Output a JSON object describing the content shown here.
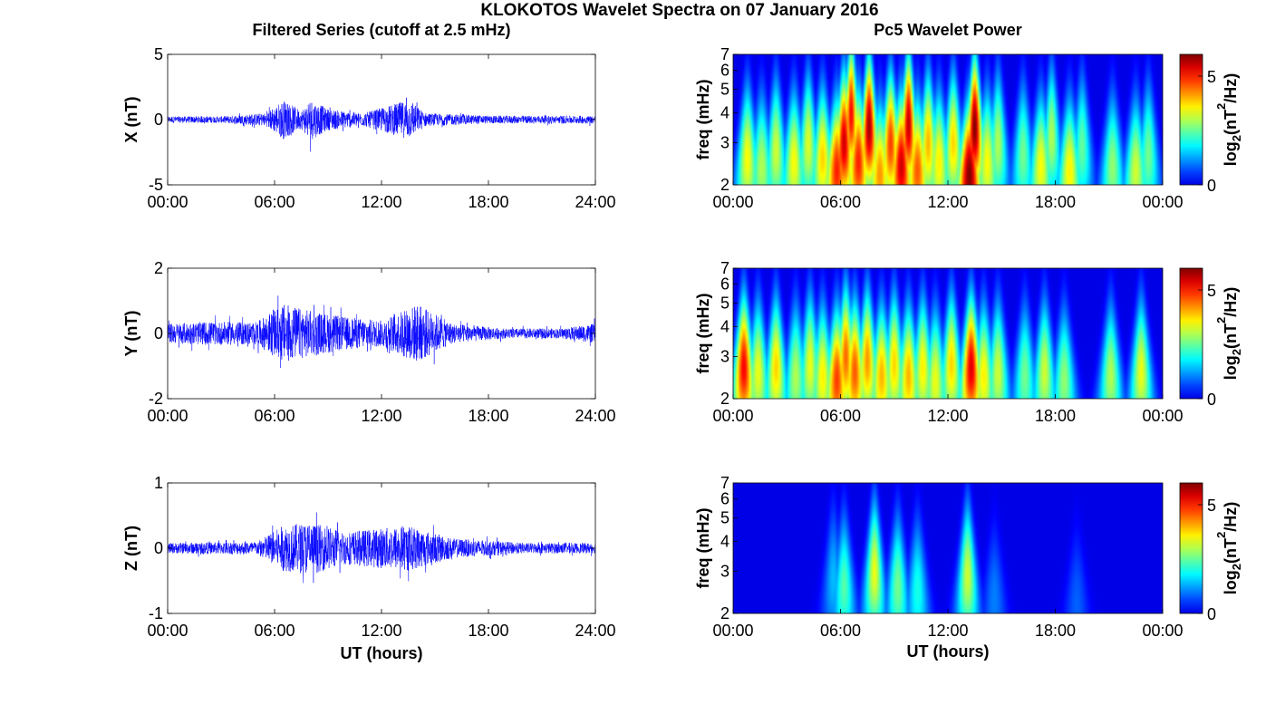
{
  "figure": {
    "title": "KLOKOTOS Wavelet Spectra on 07 January 2016",
    "left_title": "Filtered Series (cutoff at 2.5 mHz)",
    "right_title": "Pc5 Wavelet Power"
  },
  "chart_data": [
    {
      "type": "line",
      "name": "X",
      "ylabel": "X (nT)",
      "xlabel": "",
      "ylim": [
        -5,
        5
      ],
      "yticks": [
        "5",
        "0",
        "-5"
      ],
      "xticks": [
        "00:00",
        "06:00",
        "12:00",
        "18:00",
        "24:00"
      ],
      "xlim_hours": [
        0,
        24
      ],
      "color": "#0000ff",
      "envelope_nT": [
        {
          "hour": 0,
          "amp": 0.25
        },
        {
          "hour": 3,
          "amp": 0.25
        },
        {
          "hour": 5.5,
          "amp": 0.5
        },
        {
          "hour": 6.5,
          "amp": 1.5
        },
        {
          "hour": 7.5,
          "amp": 0.7
        },
        {
          "hour": 8,
          "amp": 1.6
        },
        {
          "hour": 9,
          "amp": 0.8
        },
        {
          "hour": 11,
          "amp": 0.5
        },
        {
          "hour": 13.5,
          "amp": 1.5
        },
        {
          "hour": 14.5,
          "amp": 0.5
        },
        {
          "hour": 18,
          "amp": 0.3
        },
        {
          "hour": 24,
          "amp": 0.3
        }
      ]
    },
    {
      "type": "line",
      "name": "Y",
      "ylabel": "Y (nT)",
      "xlabel": "",
      "ylim": [
        -2,
        2
      ],
      "yticks": [
        "2",
        "0",
        "-2"
      ],
      "xticks": [
        "00:00",
        "06:00",
        "12:00",
        "18:00",
        "24:00"
      ],
      "xlim_hours": [
        0,
        24
      ],
      "color": "#0000ff",
      "envelope_nT": [
        {
          "hour": 0,
          "amp": 0.3
        },
        {
          "hour": 2,
          "amp": 0.35
        },
        {
          "hour": 5,
          "amp": 0.35
        },
        {
          "hour": 6.5,
          "amp": 0.9
        },
        {
          "hour": 8,
          "amp": 0.7
        },
        {
          "hour": 10,
          "amp": 0.5
        },
        {
          "hour": 12,
          "amp": 0.4
        },
        {
          "hour": 14,
          "amp": 0.9
        },
        {
          "hour": 16,
          "amp": 0.3
        },
        {
          "hour": 19,
          "amp": 0.15
        },
        {
          "hour": 22,
          "amp": 0.15
        },
        {
          "hour": 24,
          "amp": 0.3
        }
      ]
    },
    {
      "type": "line",
      "name": "Z",
      "ylabel": "Z (nT)",
      "xlabel": "UT (hours)",
      "ylim": [
        -1,
        1
      ],
      "yticks": [
        "1",
        "0",
        "-1"
      ],
      "xticks": [
        "00:00",
        "06:00",
        "12:00",
        "18:00",
        "24:00"
      ],
      "xlim_hours": [
        0,
        24
      ],
      "color": "#0000ff",
      "envelope_nT": [
        {
          "hour": 0,
          "amp": 0.08
        },
        {
          "hour": 5,
          "amp": 0.1
        },
        {
          "hour": 6.5,
          "amp": 0.35
        },
        {
          "hour": 8,
          "amp": 0.4
        },
        {
          "hour": 10,
          "amp": 0.25
        },
        {
          "hour": 13.5,
          "amp": 0.35
        },
        {
          "hour": 16,
          "amp": 0.15
        },
        {
          "hour": 20,
          "amp": 0.08
        },
        {
          "hour": 24,
          "amp": 0.08
        }
      ]
    },
    {
      "type": "heatmap",
      "name": "X wavelet power",
      "ylabel": "freq (mHz)",
      "xlabel": "",
      "yscale": "log",
      "ylim_mHz": [
        2,
        7
      ],
      "yticks": [
        "7",
        "6",
        "5",
        "4",
        "3",
        "2"
      ],
      "xticks": [
        "00:00",
        "06:00",
        "12:00",
        "18:00",
        "00:00"
      ],
      "colorbar": {
        "label_base": "log",
        "label_sub": "2",
        "label_unit": "(nT",
        "label_sup": "2",
        "label_end": "/Hz)",
        "ticks": [
          "5",
          "0"
        ],
        "range": [
          0,
          6
        ],
        "colormap": "jet"
      },
      "events_hour_freq_power": [
        [
          0.8,
          2.6,
          3.5
        ],
        [
          1.6,
          2.4,
          3.0
        ],
        [
          2.4,
          2.8,
          3.2
        ],
        [
          3.4,
          2.5,
          3.5
        ],
        [
          4.2,
          3.0,
          3.3
        ],
        [
          5.0,
          2.6,
          3.8
        ],
        [
          5.8,
          2.3,
          5.0
        ],
        [
          6.2,
          3.0,
          5.5
        ],
        [
          6.6,
          4.0,
          5.2
        ],
        [
          7.0,
          2.5,
          5.0
        ],
        [
          7.6,
          3.5,
          5.8
        ],
        [
          8.2,
          2.2,
          4.2
        ],
        [
          8.8,
          3.0,
          4.8
        ],
        [
          9.4,
          2.4,
          5.5
        ],
        [
          9.8,
          3.6,
          5.6
        ],
        [
          10.3,
          2.3,
          4.6
        ],
        [
          10.9,
          3.0,
          4.0
        ],
        [
          11.5,
          2.5,
          3.6
        ],
        [
          12.3,
          3.0,
          3.8
        ],
        [
          13.2,
          2.2,
          6.0
        ],
        [
          13.5,
          3.5,
          6.0
        ],
        [
          14.2,
          2.5,
          3.5
        ],
        [
          14.8,
          3.0,
          3.0
        ],
        [
          16.2,
          2.7,
          2.6
        ],
        [
          17.2,
          2.4,
          3.5
        ],
        [
          17.8,
          3.2,
          3.0
        ],
        [
          18.8,
          2.3,
          3.6
        ],
        [
          19.5,
          2.9,
          2.5
        ],
        [
          21.2,
          2.4,
          2.8
        ],
        [
          22.5,
          2.3,
          3.2
        ],
        [
          23.2,
          2.7,
          2.6
        ]
      ]
    },
    {
      "type": "heatmap",
      "name": "Y wavelet power",
      "ylabel": "freq (mHz)",
      "xlabel": "",
      "yscale": "log",
      "ylim_mHz": [
        2,
        7
      ],
      "yticks": [
        "7",
        "6",
        "5",
        "4",
        "3",
        "2"
      ],
      "xticks": [
        "00:00",
        "06:00",
        "12:00",
        "18:00",
        "00:00"
      ],
      "colorbar": {
        "label_base": "log",
        "label_sub": "2",
        "label_unit": "(nT",
        "label_sup": "2",
        "label_end": "/Hz)",
        "ticks": [
          "5",
          "0"
        ],
        "range": [
          0,
          6
        ],
        "colormap": "jet"
      },
      "events_hour_freq_power": [
        [
          0.6,
          2.7,
          5.2
        ],
        [
          1.4,
          2.6,
          3.4
        ],
        [
          2.4,
          2.7,
          3.8
        ],
        [
          3.5,
          2.5,
          3.0
        ],
        [
          4.3,
          2.8,
          3.4
        ],
        [
          5.0,
          2.5,
          3.6
        ],
        [
          5.8,
          2.4,
          4.8
        ],
        [
          6.3,
          3.0,
          4.5
        ],
        [
          6.8,
          2.6,
          4.6
        ],
        [
          7.5,
          2.9,
          4.2
        ],
        [
          8.3,
          2.5,
          4.0
        ],
        [
          9.0,
          2.8,
          3.8
        ],
        [
          9.8,
          2.5,
          4.0
        ],
        [
          10.6,
          2.7,
          3.6
        ],
        [
          11.3,
          2.4,
          3.4
        ],
        [
          12.2,
          2.8,
          3.8
        ],
        [
          13.3,
          2.7,
          5.4
        ],
        [
          14.0,
          2.5,
          3.6
        ],
        [
          14.8,
          2.6,
          3.2
        ],
        [
          16.3,
          2.5,
          2.6
        ],
        [
          17.4,
          2.6,
          3.2
        ],
        [
          18.5,
          2.4,
          2.8
        ],
        [
          21.1,
          2.5,
          3.0
        ],
        [
          22.8,
          2.6,
          3.4
        ]
      ]
    },
    {
      "type": "heatmap",
      "name": "Z wavelet power",
      "ylabel": "freq (mHz)",
      "xlabel": "UT (hours)",
      "yscale": "log",
      "ylim_mHz": [
        2,
        7
      ],
      "yticks": [
        "7",
        "6",
        "5",
        "4",
        "3",
        "2"
      ],
      "xticks": [
        "00:00",
        "06:00",
        "12:00",
        "18:00",
        "00:00"
      ],
      "colorbar": {
        "label_base": "log",
        "label_sub": "2",
        "label_unit": "(nT",
        "label_sup": "2",
        "label_end": "/Hz)",
        "ticks": [
          "5",
          "0"
        ],
        "range": [
          0,
          6
        ],
        "colormap": "jet"
      },
      "events_hour_freq_power": [
        [
          5.6,
          2.8,
          1.4
        ],
        [
          6.2,
          2.6,
          2.4
        ],
        [
          7.9,
          3.0,
          3.4
        ],
        [
          9.2,
          2.6,
          2.6
        ],
        [
          10.3,
          2.5,
          2.0
        ],
        [
          13.1,
          2.9,
          3.2
        ],
        [
          14.6,
          2.3,
          1.0
        ],
        [
          19.2,
          2.2,
          0.8
        ]
      ]
    }
  ]
}
